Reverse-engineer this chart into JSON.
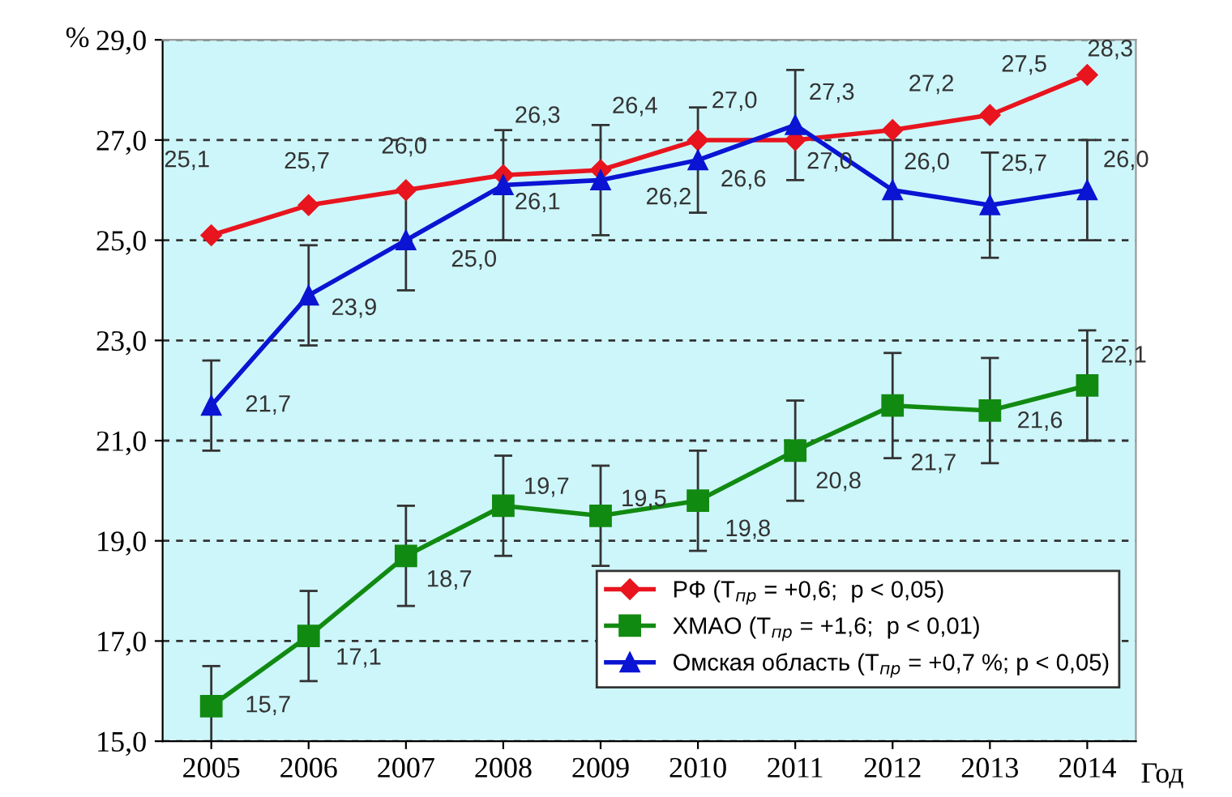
{
  "chart_data": {
    "type": "line",
    "xlabel": "Год",
    "ylabel": "%",
    "categories": [
      "2005",
      "2006",
      "2007",
      "2008",
      "2009",
      "2010",
      "2011",
      "2012",
      "2013",
      "2014"
    ],
    "series": [
      {
        "name": "РФ (T$_{пр}$ = +0,6;  p < 0,05)",
        "color": "#e8141e",
        "marker": "diamond",
        "values": [
          25.1,
          25.7,
          26.0,
          26.3,
          26.4,
          27.0,
          27.0,
          27.2,
          27.5,
          28.3
        ],
        "value_labels": [
          "25,1",
          "25,7",
          "26,0",
          "26,3",
          "26,4",
          "27,0",
          "27,0",
          "27,2",
          "27,5",
          "28,3"
        ]
      },
      {
        "name": "ХМАО (T$_{пр}$ = +1,6;  p < 0,01)",
        "color": "#118a11",
        "marker": "square",
        "values": [
          15.7,
          17.1,
          18.7,
          19.7,
          19.5,
          19.8,
          20.8,
          21.7,
          21.6,
          22.1
        ],
        "value_labels": [
          "15,7",
          "17,1",
          "18,7",
          "19,7",
          "19,5",
          "19,8",
          "20,8",
          "21,7",
          "21,6",
          "22,1"
        ],
        "errors": [
          0.8,
          0.9,
          1.0,
          1.0,
          1.0,
          1.0,
          1.0,
          1.05,
          1.05,
          1.1
        ]
      },
      {
        "name": "Омская область (T$_{пр}$ = +0,7 %; p < 0,05)",
        "color": "#0a14d2",
        "marker": "triangle",
        "values": [
          21.7,
          23.9,
          25.0,
          26.1,
          26.2,
          26.6,
          27.3,
          26.0,
          25.7,
          26.0
        ],
        "value_labels": [
          "21,7",
          "23,9",
          "25,0",
          "26,1",
          "26,2",
          "26,6",
          "27,3",
          "26,0",
          "25,7",
          "26,0"
        ],
        "errors": [
          0.9,
          1.0,
          1.0,
          1.1,
          1.1,
          1.05,
          1.1,
          1.0,
          1.05,
          1.0
        ]
      }
    ],
    "ylim": [
      15,
      29
    ],
    "yticks": [
      {
        "value": 15,
        "label": "15,0"
      },
      {
        "value": 17,
        "label": "17,0"
      },
      {
        "value": 19,
        "label": "19,0"
      },
      {
        "value": 21,
        "label": "21,0"
      },
      {
        "value": 23,
        "label": "23,0"
      },
      {
        "value": 25,
        "label": "25,0"
      },
      {
        "value": 27,
        "label": "27,0"
      },
      {
        "value": 29,
        "label": "29,0"
      }
    ],
    "grid": "y",
    "legend": "bottom right",
    "line_style": "solid"
  }
}
